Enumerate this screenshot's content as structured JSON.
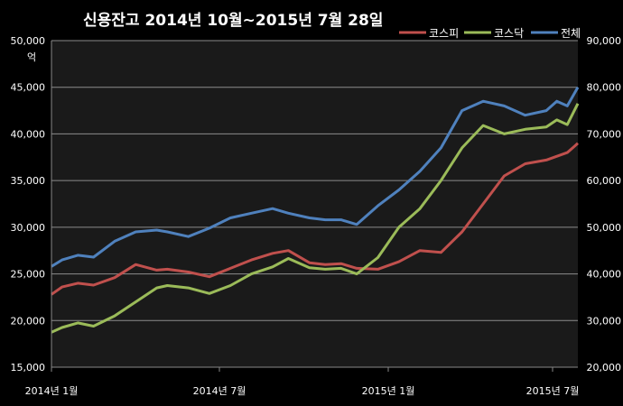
{
  "chart_data": {
    "type": "line",
    "title": "신용잔고 2014년 10월~2015년 7월 28일",
    "left_unit": "억",
    "x_ticks": [
      "2014년 1월",
      "2014년 7월",
      "2015년 1월",
      "2015년 7월"
    ],
    "left_axis": {
      "ylim": [
        15000,
        50000
      ],
      "ticks": [
        "15,000",
        "20,000",
        "25,000",
        "30,000",
        "35,000",
        "40,000",
        "45,000",
        "50,000"
      ]
    },
    "right_axis": {
      "ylim": [
        20000,
        90000
      ],
      "ticks": [
        "20,000",
        "30,000",
        "40,000",
        "50,000",
        "60,000",
        "70,000",
        "80,000",
        "90,000"
      ]
    },
    "grid": true,
    "legend_position": "top-right",
    "series": [
      {
        "name": "코스피",
        "axis": "left",
        "color": "#c0504d",
        "x": [
          0.0,
          0.02,
          0.05,
          0.08,
          0.12,
          0.16,
          0.2,
          0.22,
          0.26,
          0.3,
          0.34,
          0.38,
          0.42,
          0.45,
          0.49,
          0.52,
          0.55,
          0.58,
          0.62,
          0.66,
          0.7,
          0.74,
          0.78,
          0.82,
          0.86,
          0.9,
          0.94,
          0.98,
          1.0
        ],
        "values": [
          22800,
          23600,
          24000,
          23800,
          24600,
          26000,
          25400,
          25500,
          25200,
          24700,
          25600,
          26500,
          27200,
          27500,
          26200,
          26000,
          26100,
          25600,
          25500,
          26300,
          27500,
          27300,
          29500,
          32500,
          35500,
          36800,
          37200,
          38000,
          39000
        ]
      },
      {
        "name": "코스닥",
        "axis": "right",
        "color": "#9bbb59",
        "x": [
          0.0,
          0.02,
          0.05,
          0.08,
          0.12,
          0.16,
          0.2,
          0.22,
          0.26,
          0.3,
          0.34,
          0.38,
          0.42,
          0.45,
          0.49,
          0.52,
          0.55,
          0.58,
          0.62,
          0.66,
          0.7,
          0.74,
          0.78,
          0.82,
          0.86,
          0.9,
          0.94,
          0.96,
          0.98,
          1.0
        ],
        "values": [
          27500,
          28500,
          29500,
          28800,
          31000,
          34000,
          37000,
          37500,
          37000,
          35800,
          37500,
          40000,
          41500,
          43300,
          41300,
          41000,
          41200,
          40000,
          43500,
          50000,
          54000,
          60000,
          67000,
          71800,
          70000,
          71000,
          71500,
          73000,
          72000,
          76500
        ]
      },
      {
        "name": "전체",
        "axis": "left",
        "color": "#4f81bd",
        "x": [
          0.0,
          0.02,
          0.05,
          0.08,
          0.12,
          0.16,
          0.2,
          0.22,
          0.26,
          0.3,
          0.34,
          0.38,
          0.42,
          0.45,
          0.49,
          0.52,
          0.55,
          0.58,
          0.62,
          0.66,
          0.7,
          0.74,
          0.78,
          0.82,
          0.86,
          0.9,
          0.94,
          0.96,
          0.98,
          1.0
        ],
        "values": [
          25800,
          26500,
          27000,
          26800,
          28500,
          29500,
          29700,
          29500,
          29000,
          29900,
          31000,
          31500,
          32000,
          31500,
          31000,
          30800,
          30800,
          30300,
          32300,
          34000,
          36000,
          38500,
          42500,
          43500,
          43000,
          42000,
          42500,
          43500,
          43000,
          45000
        ]
      }
    ]
  }
}
